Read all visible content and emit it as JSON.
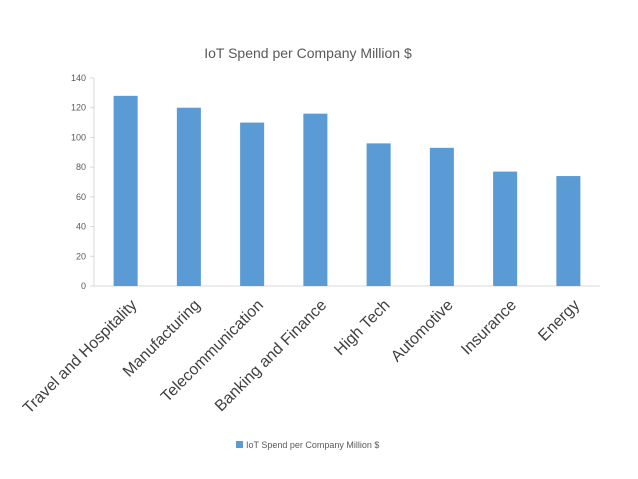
{
  "chart_data": {
    "type": "bar",
    "title": "IoT Spend per Company Million $",
    "categories": [
      "Travel and Hospitality",
      "Manufacturing",
      "Telecommunication",
      "Banking and Finance",
      "High Tech",
      "Automotive",
      "Insurance",
      "Energy"
    ],
    "series": [
      {
        "name": "IoT Spend per Company Million $",
        "values": [
          128,
          120,
          110,
          116,
          96,
          93,
          77,
          74
        ],
        "color": "#5b9bd5"
      }
    ],
    "ylim": [
      0,
      140
    ],
    "yticks": [
      0,
      20,
      40,
      60,
      80,
      100,
      120,
      140
    ],
    "grid": false,
    "legend": "bottom"
  }
}
